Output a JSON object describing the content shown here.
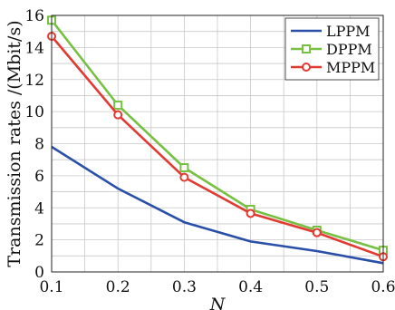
{
  "chart_data": {
    "type": "line",
    "xlabel": "N",
    "ylabel": "Transmission rates /(Mbit/s)",
    "x": [
      0.1,
      0.2,
      0.3,
      0.4,
      0.5,
      0.6
    ],
    "xlim": [
      0.1,
      0.6
    ],
    "ylim": [
      0,
      16
    ],
    "x_ticks": [
      "0.1",
      "0.2",
      "0.3",
      "0.4",
      "0.5",
      "0.6"
    ],
    "y_ticks": [
      "0",
      "2",
      "4",
      "6",
      "8",
      "10",
      "12",
      "14",
      "16"
    ],
    "grid": true,
    "legend_position": "top-right",
    "series": [
      {
        "name": "LPPM",
        "color": "#2a4fa8",
        "marker": "none",
        "values": [
          7.8,
          5.2,
          3.1,
          1.9,
          1.3,
          0.55
        ]
      },
      {
        "name": "DPPM",
        "color": "#77c043",
        "marker": "square",
        "values": [
          15.7,
          10.4,
          6.5,
          3.9,
          2.6,
          1.35
        ]
      },
      {
        "name": "MPPM",
        "color": "#e23a32",
        "marker": "circle",
        "values": [
          14.7,
          9.8,
          5.9,
          3.65,
          2.45,
          0.95
        ]
      }
    ]
  }
}
